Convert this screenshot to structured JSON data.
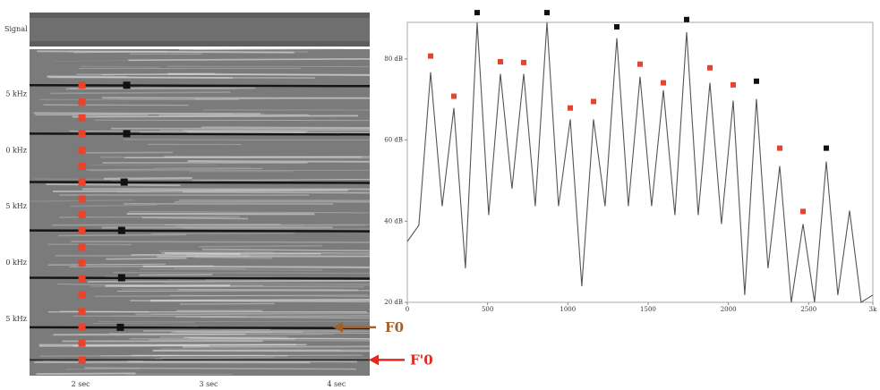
{
  "chart_data": [
    {
      "type": "spectrogram",
      "signal_label": "Signal",
      "xlim": [
        1.6,
        4.26
      ],
      "xticks": [
        {
          "value": 2,
          "label": "2  sec"
        },
        {
          "value": 3,
          "label": "3  sec"
        },
        {
          "value": 4,
          "label": "4  sec"
        }
      ],
      "ylim": [
        0,
        2.9
      ],
      "yticks": [
        {
          "value": 0.5,
          "label": "5 kHz"
        },
        {
          "value": 1,
          "label": "0 kHz"
        },
        {
          "value": 1.5,
          "label": "5 kHz"
        },
        {
          "value": 2,
          "label": "0 kHz"
        },
        {
          "value": 2.5,
          "label": "5 kHz"
        }
      ],
      "series": [
        {
          "color": "#e8432b",
          "x": [
            2.01,
            2.01,
            2.01,
            2.01,
            2.01,
            2.01,
            2.01,
            2.01,
            2.01,
            2.01,
            2.01,
            2.01,
            2.01,
            2.01,
            2.01,
            2.01,
            2.01,
            2.01
          ],
          "values": [
            0.14,
            0.29,
            0.43,
            0.57,
            0.72,
            0.86,
            1.0,
            1.14,
            1.29,
            1.43,
            1.57,
            1.72,
            1.86,
            2.0,
            2.15,
            2.29,
            2.43,
            2.58
          ]
        },
        {
          "color": "#111111",
          "x": [
            2.31,
            2.32,
            2.32,
            2.34,
            2.36,
            2.36
          ],
          "values": [
            0.43,
            0.87,
            1.29,
            1.72,
            2.15,
            2.58
          ]
        }
      ],
      "annotations": [
        {
          "text": "F0",
          "color": "#a0622d"
        },
        {
          "text": "F'0",
          "color": "#e02a1f"
        }
      ]
    },
    {
      "type": "line",
      "color": "#555555",
      "x": [
        0,
        72,
        145,
        217,
        290,
        362,
        435,
        507,
        580,
        652,
        725,
        797,
        870,
        942,
        1015,
        1087,
        1160,
        1232,
        1305,
        1377,
        1450,
        1522,
        1595,
        1667,
        1740,
        1812,
        1885,
        1957,
        2030,
        2102,
        2175,
        2247,
        2320,
        2392,
        2465,
        2537,
        2610,
        2682,
        2755,
        2827,
        2900
      ],
      "values": [
        35,
        39,
        76.7,
        43.7,
        67.9,
        28.4,
        89,
        41.5,
        76.3,
        48,
        76.3,
        43.7,
        89,
        43.7,
        65.1,
        24,
        65.1,
        43.7,
        85.1,
        43.7,
        75.6,
        43.7,
        72.3,
        41.5,
        86.6,
        41.5,
        74.1,
        39.3,
        69.7,
        21.8,
        70.1,
        28.4,
        53.6,
        20,
        39.3,
        20,
        54.7,
        21.8,
        42.6,
        20,
        21.8
      ],
      "xlim": [
        0,
        2900
      ],
      "xticks": [
        0,
        500,
        1000,
        1500,
        2000,
        2500,
        {
          "value": 2900,
          "label": "3k"
        }
      ],
      "ylim": [
        20,
        89
      ],
      "yticks": [
        {
          "value": 20,
          "label": "20 dB"
        },
        {
          "value": 40,
          "label": "40 dB"
        },
        {
          "value": 60,
          "label": "60 dB"
        },
        {
          "value": 80,
          "label": "80 dB"
        }
      ],
      "series": [
        {
          "color": "#e8432b",
          "x": [
            145,
            290,
            580,
            725,
            1015,
            1160,
            1450,
            1595,
            1885,
            2030,
            2320,
            2465
          ],
          "values": [
            80.7,
            70.8,
            79.3,
            79.1,
            67.9,
            69.5,
            78.7,
            74.1,
            77.8,
            73.6,
            58,
            42.4
          ]
        },
        {
          "color": "#111111",
          "x": [
            435,
            870,
            1305,
            1740,
            2175,
            2610
          ],
          "values": [
            91.4,
            91.4,
            87.9,
            89.7,
            74.5,
            58
          ]
        }
      ]
    }
  ]
}
